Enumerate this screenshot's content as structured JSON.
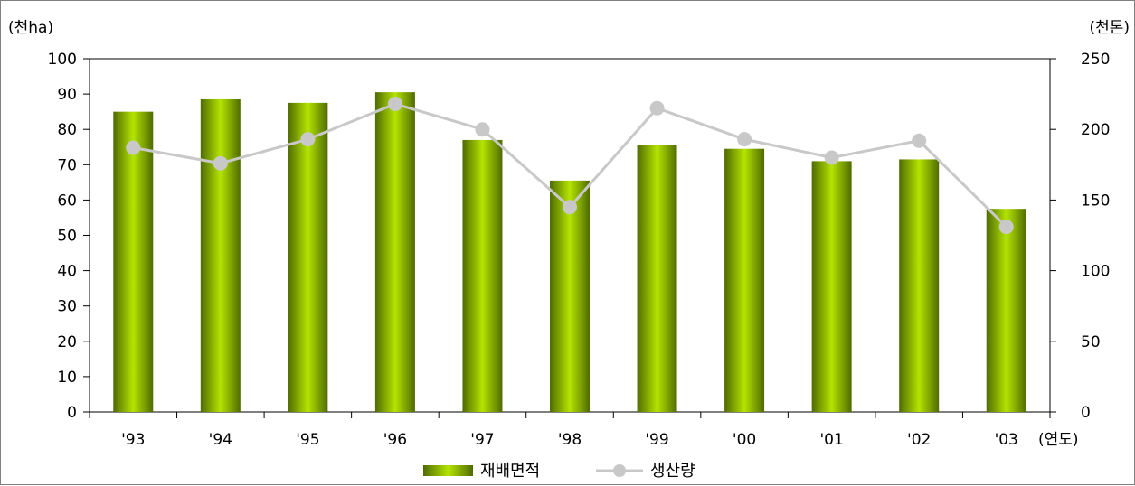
{
  "chart_data": {
    "type": "bar",
    "categories": [
      "'93",
      "'94",
      "'95",
      "'96",
      "'97",
      "'98",
      "'99",
      "'00",
      "'01",
      "'02",
      "'03"
    ],
    "series": [
      {
        "name": "재배면적",
        "type": "bar",
        "axis": "left",
        "values": [
          85,
          88.5,
          87.5,
          90.5,
          77,
          65.5,
          75.5,
          74.5,
          71,
          71.5,
          57.5
        ]
      },
      {
        "name": "생산량",
        "type": "line",
        "axis": "right",
        "values": [
          187,
          176,
          193,
          218,
          200,
          145,
          215,
          193,
          180,
          192,
          131
        ]
      }
    ],
    "y_left": {
      "unit_label": "(천ha)",
      "lim": [
        0,
        100
      ],
      "ticks": [
        0,
        10,
        20,
        30,
        40,
        50,
        60,
        70,
        80,
        90,
        100
      ]
    },
    "y_right": {
      "unit_label": "(천톤)",
      "lim": [
        0,
        250
      ],
      "ticks": [
        0,
        50,
        100,
        150,
        200,
        250
      ]
    },
    "x_unit_label": "(연도)",
    "grid": false,
    "legend": "bottom-center",
    "colors": {
      "bar_edge": "#4f6b00",
      "bar_center": "#b4e400",
      "line": "#c8c8c8",
      "marker": "#c8c8c8"
    }
  }
}
